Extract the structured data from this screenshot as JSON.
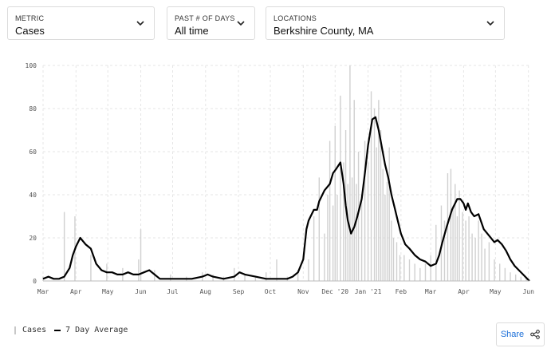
{
  "controls": {
    "metric": {
      "label": "METRIC",
      "value": "Cases"
    },
    "days": {
      "label": "PAST # OF DAYS",
      "value": "All time"
    },
    "location": {
      "label": "LOCATIONS",
      "value": "Berkshire County, MA"
    }
  },
  "legend": {
    "bars_label": "Cases",
    "line_label": "7 Day Average"
  },
  "share": {
    "label": "Share",
    "icon": "share-icon"
  },
  "chart_data": {
    "type": "bar",
    "title": "",
    "xlabel": "",
    "ylabel": "",
    "ylim": [
      0,
      100
    ],
    "yticks": [
      0,
      20,
      40,
      60,
      80,
      100
    ],
    "xlim": [
      0,
      458
    ],
    "xticks": [
      {
        "label": "Mar",
        "day": 0
      },
      {
        "label": "Apr",
        "day": 31
      },
      {
        "label": "May",
        "day": 61
      },
      {
        "label": "Jun",
        "day": 92
      },
      {
        "label": "Jul",
        "day": 122
      },
      {
        "label": "Aug",
        "day": 153
      },
      {
        "label": "Sep",
        "day": 184
      },
      {
        "label": "Oct",
        "day": 214
      },
      {
        "label": "Nov",
        "day": 245
      },
      {
        "label": "Dec '20",
        "day": 275
      },
      {
        "label": "Jan '21",
        "day": 306
      },
      {
        "label": "Feb",
        "day": 337
      },
      {
        "label": "Mar",
        "day": 365
      },
      {
        "label": "Apr",
        "day": 396
      },
      {
        "label": "May",
        "day": 426
      },
      {
        "label": "Jun",
        "day": 457
      }
    ],
    "grid": true,
    "legend_position": "bottom-left",
    "colors": {
      "bars": "#d0d0d0",
      "line": "#000000",
      "grid": "#e6e6e6"
    },
    "series": [
      {
        "name": "Cases",
        "kind": "bar",
        "x": [
          0,
          20,
          30,
          45,
          60,
          75,
          90,
          92,
          105,
          120,
          135,
          150,
          160,
          170,
          180,
          190,
          200,
          210,
          220,
          230,
          240,
          250,
          255,
          260,
          265,
          268,
          270,
          273,
          275,
          277,
          280,
          283,
          285,
          287,
          289,
          291,
          293,
          295,
          297,
          300,
          303,
          306,
          309,
          312,
          314,
          316,
          318,
          320,
          322,
          324,
          326,
          328,
          330,
          333,
          336,
          340,
          345,
          350,
          355,
          360,
          365,
          370,
          375,
          378,
          381,
          384,
          386,
          388,
          390,
          392,
          395,
          398,
          401,
          404,
          407,
          410,
          413,
          416,
          420,
          425,
          430,
          435,
          440,
          445,
          450,
          455,
          458
        ],
        "values": [
          2,
          32,
          30,
          12,
          8,
          6,
          10,
          24,
          5,
          3,
          2,
          4,
          3,
          2,
          6,
          3,
          2,
          4,
          10,
          2,
          5,
          10,
          30,
          48,
          22,
          40,
          65,
          35,
          72,
          40,
          86,
          55,
          70,
          45,
          100,
          48,
          84,
          45,
          60,
          40,
          65,
          55,
          88,
          80,
          62,
          84,
          70,
          52,
          40,
          46,
          62,
          28,
          20,
          18,
          12,
          12,
          10,
          8,
          6,
          8,
          12,
          26,
          35,
          28,
          50,
          52,
          35,
          45,
          30,
          42,
          32,
          28,
          30,
          22,
          20,
          28,
          22,
          15,
          18,
          10,
          8,
          6,
          4,
          3,
          2,
          1,
          0
        ]
      },
      {
        "name": "7 Day Average",
        "kind": "line",
        "x": [
          0,
          5,
          10,
          15,
          20,
          25,
          28,
          31,
          35,
          40,
          45,
          50,
          55,
          60,
          65,
          70,
          75,
          80,
          85,
          90,
          95,
          100,
          110,
          120,
          130,
          140,
          150,
          155,
          160,
          170,
          180,
          185,
          190,
          200,
          210,
          220,
          225,
          230,
          235,
          240,
          245,
          248,
          250,
          252,
          255,
          258,
          260,
          265,
          270,
          273,
          276,
          280,
          283,
          285,
          287,
          290,
          293,
          296,
          300,
          303,
          306,
          310,
          313,
          316,
          319,
          322,
          325,
          328,
          331,
          334,
          337,
          341,
          345,
          350,
          355,
          360,
          365,
          370,
          373,
          376,
          380,
          385,
          390,
          393,
          396,
          398,
          400,
          403,
          406,
          410,
          415,
          420,
          425,
          428,
          432,
          436,
          440,
          444,
          448,
          452,
          456,
          458
        ],
        "values": [
          1,
          2,
          1,
          1,
          2,
          6,
          12,
          16,
          20,
          17,
          15,
          8,
          5,
          4,
          4,
          3,
          3,
          4,
          3,
          3,
          4,
          5,
          1,
          1,
          1,
          1,
          2,
          3,
          2,
          1,
          2,
          4,
          3,
          2,
          1,
          1,
          1,
          1,
          2,
          4,
          10,
          24,
          28,
          30,
          33,
          33,
          37,
          42,
          45,
          50,
          52,
          55,
          45,
          35,
          28,
          22,
          25,
          30,
          38,
          50,
          63,
          75,
          76,
          70,
          62,
          54,
          48,
          40,
          34,
          28,
          22,
          17,
          15,
          12,
          10,
          9,
          7,
          8,
          12,
          18,
          25,
          33,
          38,
          38,
          36,
          33,
          36,
          32,
          30,
          31,
          24,
          21,
          18,
          19,
          17,
          14,
          10,
          7,
          5,
          3,
          1,
          0
        ]
      }
    ]
  }
}
